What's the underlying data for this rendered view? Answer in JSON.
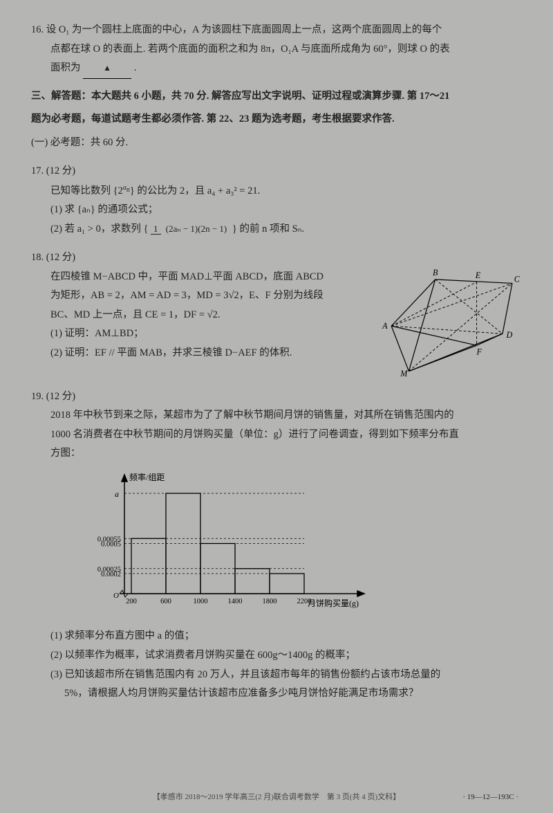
{
  "q16": {
    "text1": "16. 设 O₁ 为一个圆柱上底面的中心，A 为该圆柱下底面圆周上一点，这两个底面圆周上的每个",
    "text2": "点都在球 O 的表面上. 若两个底面的面积之和为 8π，O₁A 与底面所成角为 60°，则球 O 的表",
    "text3": "面积为",
    "text4": "."
  },
  "section3": {
    "header": "三、解答题：本大题共 6 小题，共 70 分. 解答应写出文字说明、证明过程或演算步骤. 第 17～21",
    "header2": "题为必考题，每道试题考生都必须作答. 第 22、23 题为选考题，考生根据要求作答.",
    "sub": "(一) 必考题：共 60 分."
  },
  "q17": {
    "title": "17. (12 分)",
    "line1_a": "已知等比数列 {2",
    "line1_b": "} 的公比为 2，且 a₄ + a₃² = 21.",
    "part1": "(1) 求 {aₙ} 的通项公式；",
    "part2_a": "(2) 若 a₁ > 0，求数列 {",
    "part2_b": "} 的前 n 项和 Sₙ.",
    "frac_top": "1",
    "frac_bot": "(2aₙ − 1)(2n − 1)"
  },
  "q18": {
    "title": "18. (12 分)",
    "line1": "在四棱锥 M−ABCD 中，平面 MAD⊥平面 ABCD，底面 ABCD",
    "line2": "为矩形，AB = 2，AM = AD = 3，MD = 3√2，E、F 分别为线段",
    "line3": "BC、MD 上一点，且 CE = 1，DF = √2.",
    "part1": "(1) 证明：AM⊥BD；",
    "part2": "(2) 证明：EF // 平面 MAB，并求三棱锥 D−AEF 的体积.",
    "labels": {
      "A": "A",
      "B": "B",
      "C": "C",
      "D": "D",
      "E": "E",
      "F": "F",
      "M": "M"
    }
  },
  "q19": {
    "title": "19. (12 分)",
    "line1": "2018 年中秋节到来之际，某超市为了了解中秋节期间月饼的销售量，对其所在销售范围内的",
    "line2": "1000 名消费者在中秋节期间的月饼购买量（单位：g）进行了问卷调查，得到如下频率分布直",
    "line3": "方图：",
    "part1": "(1) 求频率分布直方图中 a 的值；",
    "part2": "(2) 以频率作为概率，试求消费者月饼购买量在 600g～1400g 的概率；",
    "part3": "(3) 已知该超市所在销售范围内有 20 万人，并且该超市每年的销售份额约占该市场总量的",
    "part3b": "5%，请根据人均月饼购买量估计该超市应准备多少吨月饼恰好能满足市场需求？",
    "chart": {
      "ylabel": "频率/组距",
      "xlabel": "月饼购买量(g)",
      "xticks": [
        "200",
        "600",
        "1000",
        "1400",
        "1800",
        "2200"
      ],
      "yticks": [
        "0.0002",
        "0.00025",
        "0.0005",
        "0.00055"
      ],
      "a_label": "a",
      "bars": [
        {
          "x": 0,
          "h": 0.55
        },
        {
          "x": 1,
          "h": 1.0
        },
        {
          "x": 2,
          "h": 0.5
        },
        {
          "x": 3,
          "h": 0.25
        },
        {
          "x": 4,
          "h": 0.2
        }
      ],
      "colors": {
        "axis": "#000",
        "bar": "none",
        "barStroke": "#000",
        "dash": "#000"
      }
    }
  },
  "footer": {
    "center": "【孝感市 2018～2019 学年高三(2 月)联合调考数学　第 3 页(共 4 页)文科】",
    "right": "· 19—12—193C ·"
  }
}
